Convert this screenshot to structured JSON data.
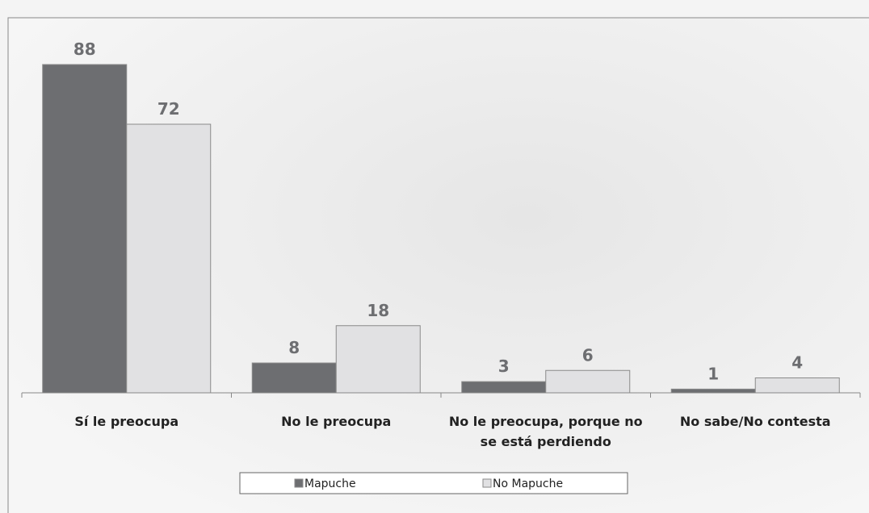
{
  "chart_data": {
    "type": "bar",
    "categories": [
      "Sí le preocupa",
      "No le preocupa",
      "No le preocupa, porque no se está perdiendo",
      "No sabe/No contesta"
    ],
    "series": [
      {
        "name": "Mapuche",
        "color": "#6d6e71",
        "values": [
          88,
          8,
          3,
          1
        ]
      },
      {
        "name": "No Mapuche",
        "color": "#e1e1e3",
        "values": [
          72,
          18,
          6,
          4
        ]
      }
    ],
    "ylim": [
      0,
      100
    ],
    "grid": false,
    "legend": "bottom"
  }
}
